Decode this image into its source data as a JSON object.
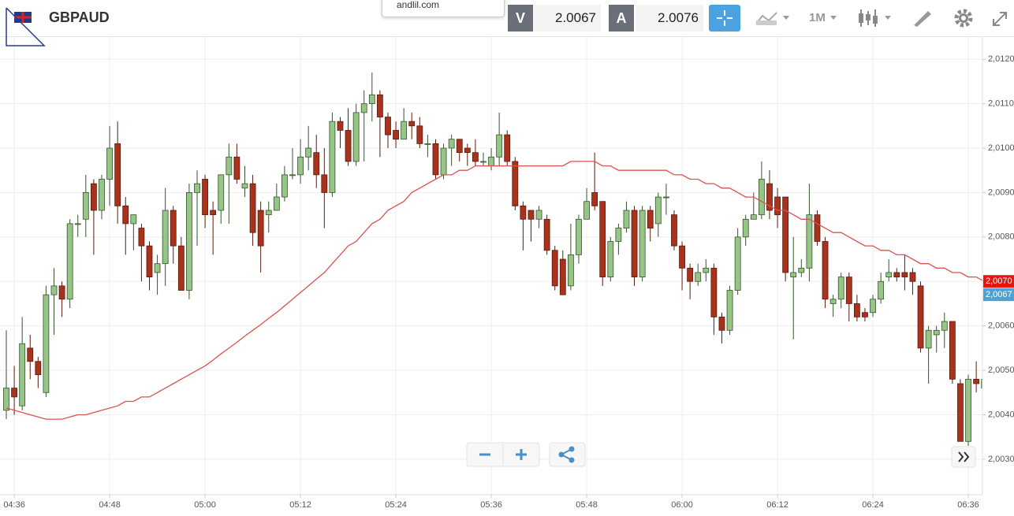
{
  "toolbar": {
    "symbol": "GBPAUD",
    "bid_label": "V",
    "bid": "2.0067",
    "ask_label": "A",
    "ask": "2.0076",
    "timeframe": "1M"
  },
  "tooltip": "andlil.com",
  "chart_data": {
    "type": "candlestick",
    "categories": [
      null,
      "04:36",
      null,
      null,
      null,
      null,
      null,
      null,
      null,
      null,
      null,
      null,
      null,
      "04:48",
      null,
      null,
      null,
      null,
      null,
      null,
      null,
      null,
      null,
      null,
      null,
      "05:00",
      null,
      null,
      null,
      null,
      null,
      null,
      null,
      null,
      null,
      null,
      null,
      "05:12",
      null,
      null,
      null,
      null,
      null,
      null,
      null,
      null,
      null,
      null,
      null,
      "05:24",
      null,
      null,
      null,
      null,
      null,
      null,
      null,
      null,
      null,
      null,
      null,
      "05:36",
      null,
      null,
      null,
      null,
      null,
      null,
      null,
      null,
      null,
      null,
      null,
      "05:48",
      null,
      null,
      null,
      null,
      null,
      null,
      null,
      null,
      null,
      null,
      null,
      "06:00",
      null,
      null,
      null,
      null,
      null,
      null,
      null,
      null,
      null,
      null,
      null,
      "06:12",
      null,
      null,
      null,
      null,
      null,
      null,
      null,
      null,
      null,
      null,
      null,
      "06:24",
      null,
      null,
      null,
      null,
      null,
      null,
      null,
      null,
      null,
      null,
      null,
      "06:36",
      null,
      null
    ],
    "open": [
      2.0041,
      2.0046,
      2.0042,
      2.0055,
      2.0052,
      2.0045,
      2.0067,
      2.0069,
      2.0066,
      2.0083,
      2.0084,
      2.0092,
      2.0086,
      2.0093,
      2.0101,
      2.0087,
      2.0083,
      2.0082,
      2.0078,
      2.0072,
      2.0074,
      2.0086,
      2.0078,
      2.0068,
      2.009,
      2.0093,
      2.0086,
      2.0086,
      2.0094,
      2.0098,
      2.0091,
      2.0092,
      2.0086,
      2.0085,
      2.0086,
      2.0089,
      2.0094,
      2.0094,
      2.0098,
      2.0099,
      2.0094,
      2.009,
      2.0106,
      2.0104,
      2.0097,
      2.0108,
      2.011,
      2.0112,
      2.0107,
      2.0104,
      2.0102,
      2.0106,
      2.0105,
      2.0101,
      2.0101,
      2.0094,
      2.01,
      2.0102,
      2.01,
      2.0099,
      2.0097,
      2.0096,
      2.0098,
      2.0103,
      2.0097,
      2.0087,
      2.0086,
      2.0084,
      2.0084,
      2.0077,
      2.0075,
      2.0069,
      2.0076,
      2.0084,
      2.009,
      2.0088,
      2.0071,
      2.0079,
      2.0082,
      2.0086,
      2.0071,
      2.0086,
      2.0083,
      2.0089,
      2.0085,
      2.0078,
      2.0073,
      2.007,
      2.0072,
      2.0073,
      2.0062,
      2.0059,
      2.0068,
      2.008,
      2.0084,
      2.0085,
      2.0092,
      2.0089,
      2.0089,
      2.0071,
      2.0072,
      2.0073,
      2.0085,
      2.0079,
      2.0065,
      2.0066,
      2.0071,
      2.0065,
      2.0063,
      2.0063,
      2.0066,
      2.0071,
      2.0072,
      2.0072,
      2.0072,
      2.0069,
      2.0055,
      2.0058,
      2.0059,
      2.0061,
      2.0047,
      2.0034,
      2.0048,
      2.0046
    ],
    "high": [
      2.0059,
      2.0051,
      2.0062,
      2.0058,
      2.0053,
      2.0069,
      2.0073,
      2.007,
      2.0084,
      2.0085,
      2.0094,
      2.0093,
      2.0094,
      2.0105,
      2.0106,
      2.0089,
      2.0085,
      2.0083,
      2.0079,
      2.0076,
      2.0091,
      2.0087,
      2.008,
      2.0092,
      2.0095,
      2.0094,
      2.0088,
      2.0094,
      2.0101,
      2.0101,
      2.0096,
      2.0094,
      2.0088,
      2.0088,
      2.0092,
      2.0096,
      2.01,
      2.0102,
      2.0105,
      2.0103,
      2.01,
      2.0108,
      2.0107,
      2.0109,
      2.011,
      2.0113,
      2.0117,
      2.0113,
      2.0108,
      2.0106,
      2.0109,
      2.0108,
      2.0107,
      2.0103,
      2.0102,
      2.0101,
      2.0103,
      2.0102,
      2.0101,
      2.0102,
      2.0099,
      2.01,
      2.0108,
      2.0104,
      2.0098,
      2.0088,
      2.0086,
      2.0087,
      2.0085,
      2.0078,
      2.0077,
      2.0083,
      2.0085,
      2.0091,
      2.0099,
      2.0088,
      2.008,
      2.0083,
      2.0088,
      2.0087,
      2.0087,
      2.0087,
      2.009,
      2.0092,
      2.0086,
      2.0079,
      2.0074,
      2.0074,
      2.0075,
      2.0074,
      2.0063,
      2.0069,
      2.0082,
      2.0085,
      2.009,
      2.0097,
      2.0095,
      2.0091,
      2.0089,
      2.008,
      2.0075,
      2.0092,
      2.0086,
      2.008,
      2.0067,
      2.0072,
      2.0072,
      2.0067,
      2.0064,
      2.0067,
      2.0072,
      2.0075,
      2.0073,
      2.0076,
      2.0073,
      2.007,
      2.006,
      2.006,
      2.0063,
      2.0061,
      2.0048,
      2.0049,
      2.0052,
      2.005
    ],
    "low": [
      2.0039,
      2.004,
      2.0041,
      2.0048,
      2.0046,
      2.0044,
      2.0058,
      2.0062,
      2.0064,
      2.008,
      2.008,
      2.0076,
      2.0084,
      2.0087,
      2.0083,
      2.0076,
      2.0077,
      2.007,
      2.0068,
      2.0067,
      2.0069,
      2.0074,
      2.0068,
      2.0066,
      2.0078,
      2.0082,
      2.0076,
      2.0083,
      2.0083,
      2.0092,
      2.0089,
      2.0078,
      2.0072,
      2.0081,
      2.0086,
      2.0088,
      2.0093,
      2.0092,
      2.0095,
      2.0091,
      2.0082,
      2.0089,
      2.01,
      2.0096,
      2.0096,
      2.0097,
      2.0106,
      2.0098,
      2.01,
      2.01,
      2.0102,
      2.0102,
      2.01,
      2.0098,
      2.0093,
      2.0093,
      2.0096,
      2.0097,
      2.0096,
      2.0096,
      2.0096,
      2.0095,
      2.0096,
      2.0096,
      2.0086,
      2.0077,
      2.0079,
      2.0082,
      2.0076,
      2.0068,
      2.0067,
      2.0068,
      2.0074,
      2.0084,
      2.0086,
      2.0069,
      2.007,
      2.0076,
      2.0081,
      2.0069,
      2.007,
      2.0079,
      2.008,
      2.0085,
      2.0077,
      2.0068,
      2.0066,
      2.0069,
      2.007,
      2.0058,
      2.0056,
      2.0058,
      2.0067,
      2.0078,
      2.0084,
      2.0084,
      2.0084,
      2.0082,
      2.007,
      2.0057,
      2.0071,
      2.007,
      2.0078,
      2.0064,
      2.0062,
      2.0064,
      2.0061,
      2.0061,
      2.0061,
      2.0062,
      2.0065,
      2.007,
      2.007,
      2.0068,
      2.0067,
      2.0054,
      2.0047,
      2.0054,
      2.0055,
      2.0047,
      2.0034,
      2.0033,
      2.0045,
      2.0045
    ],
    "close": [
      2.0046,
      2.0044,
      2.0056,
      2.0052,
      2.0049,
      2.0067,
      2.0069,
      2.0066,
      2.0083,
      2.0083,
      2.009,
      2.0086,
      2.0093,
      2.01,
      2.0087,
      2.0083,
      2.0085,
      2.0078,
      2.0071,
      2.0074,
      2.0086,
      2.0078,
      2.0068,
      2.009,
      2.0092,
      2.0085,
      2.0085,
      2.0094,
      2.0098,
      2.0093,
      2.0092,
      2.0081,
      2.0078,
      2.0086,
      2.0089,
      2.0094,
      2.0094,
      2.0098,
      2.01,
      2.0094,
      2.009,
      2.0106,
      2.0104,
      2.0097,
      2.0108,
      2.011,
      2.0112,
      2.0107,
      2.0103,
      2.0102,
      2.0106,
      2.0105,
      2.0101,
      2.0101,
      2.0094,
      2.01,
      2.0102,
      2.0099,
      2.0099,
      2.0097,
      2.0097,
      2.0098,
      2.0103,
      2.0097,
      2.0087,
      2.0084,
      2.0084,
      2.0086,
      2.0077,
      2.0069,
      2.0067,
      2.0076,
      2.0084,
      2.0088,
      2.0087,
      2.0071,
      2.0079,
      2.0082,
      2.0086,
      2.0071,
      2.0086,
      2.0082,
      2.0089,
      2.0089,
      2.0078,
      2.0073,
      2.007,
      2.0072,
      2.0073,
      2.0062,
      2.0059,
      2.0068,
      2.008,
      2.0084,
      2.0085,
      2.0093,
      2.0086,
      2.0085,
      2.0072,
      2.0072,
      2.0073,
      2.0085,
      2.0079,
      2.0066,
      2.0066,
      2.0071,
      2.0065,
      2.0062,
      2.0062,
      2.0066,
      2.007,
      2.0072,
      2.0071,
      2.0071,
      2.007,
      2.0055,
      2.0059,
      2.0059,
      2.0061,
      2.0048,
      2.0034,
      2.0048,
      2.0047,
      2.0048
    ],
    "up_color": "#97c487",
    "down_color": "#a8321b",
    "line": {
      "color": "#d9534f",
      "values": [
        2.00415,
        2.0041,
        2.00405,
        2.004,
        2.00395,
        2.0039,
        2.0039,
        2.0039,
        2.00395,
        2.004,
        2.004,
        2.00405,
        2.0041,
        2.00415,
        2.0042,
        2.0043,
        2.0043,
        2.0044,
        2.0044,
        2.0045,
        2.0046,
        2.0047,
        2.0048,
        2.0049,
        2.005,
        2.0051,
        2.00523,
        2.00537,
        2.0055,
        2.00563,
        2.00577,
        2.0059,
        2.00603,
        2.00617,
        2.0063,
        2.00645,
        2.0066,
        2.00675,
        2.0069,
        2.00705,
        2.0072,
        2.0074,
        2.0076,
        2.0078,
        2.0079,
        2.0081,
        2.0083,
        2.0084,
        2.0086,
        2.0087,
        2.0088,
        2.009,
        2.0091,
        2.0092,
        2.0093,
        2.0094,
        2.0094,
        2.0095,
        2.0095,
        2.0096,
        2.0096,
        2.0096,
        2.0096,
        2.0096,
        2.0096,
        2.0096,
        2.0096,
        2.0096,
        2.0096,
        2.0096,
        2.0096,
        2.0097,
        2.0097,
        2.0097,
        2.0097,
        2.0096,
        2.0096,
        2.0095,
        2.0095,
        2.0095,
        2.0095,
        2.0095,
        2.0095,
        2.0095,
        2.0094,
        2.0094,
        2.0093,
        2.0093,
        2.0092,
        2.0092,
        2.0091,
        2.0091,
        2.009,
        2.0089,
        2.0089,
        2.0088,
        2.0087,
        2.0086,
        2.0086,
        2.0085,
        2.0084,
        2.0084,
        2.0083,
        2.0082,
        2.0081,
        2.0081,
        2.008,
        2.0079,
        2.0078,
        2.0078,
        2.0077,
        2.0077,
        2.0076,
        2.0076,
        2.0075,
        2.0074,
        2.0074,
        2.0073,
        2.0073,
        2.0072,
        2.0072,
        2.0071,
        2.0071,
        2.007
      ]
    },
    "ylim": [
      2.0022,
      2.0125
    ],
    "yticks": [
      {
        "value": 2.003,
        "label": "2,0030"
      },
      {
        "value": 2.004,
        "label": "2,0040"
      },
      {
        "value": 2.005,
        "label": "2,0050"
      },
      {
        "value": 2.006,
        "label": "2,0060"
      },
      {
        "value": 2.007,
        "label": "2,0070"
      },
      {
        "value": 2.008,
        "label": "2,0080"
      },
      {
        "value": 2.009,
        "label": "2,0090"
      },
      {
        "value": 2.01,
        "label": "2,0100"
      },
      {
        "value": 2.011,
        "label": "2,0110"
      },
      {
        "value": 2.012,
        "label": "2,0120"
      }
    ],
    "grid": true,
    "price_tags": [
      {
        "value": 2.007,
        "label": "2,0070",
        "color": "#e8150c"
      },
      {
        "value": 2.0067,
        "label": "2,0067",
        "color": "#4aa3d8"
      }
    ]
  }
}
